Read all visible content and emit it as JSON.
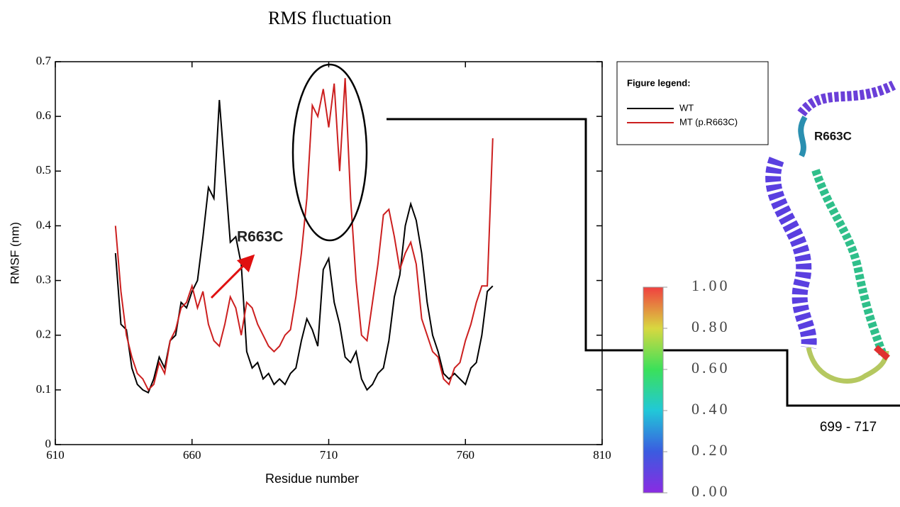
{
  "chart_data": {
    "type": "line",
    "title": "RMS fluctuation",
    "xlabel": "Residue number",
    "ylabel": "RMSF (nm)",
    "xlim": [
      610,
      810
    ],
    "xticks": [
      610,
      660,
      710,
      760,
      810
    ],
    "ylim": [
      0,
      0.7
    ],
    "yticks": [
      0,
      0.1,
      0.2,
      0.3,
      0.4,
      0.5,
      0.6,
      0.7
    ],
    "x": [
      632,
      634,
      636,
      638,
      640,
      642,
      644,
      646,
      648,
      650,
      652,
      654,
      656,
      658,
      660,
      662,
      664,
      666,
      668,
      670,
      672,
      674,
      676,
      678,
      680,
      682,
      684,
      686,
      688,
      690,
      692,
      694,
      696,
      698,
      700,
      702,
      704,
      706,
      708,
      710,
      712,
      714,
      716,
      718,
      720,
      722,
      724,
      726,
      728,
      730,
      732,
      734,
      736,
      738,
      740,
      742,
      744,
      746,
      748,
      750,
      752,
      754,
      756,
      758,
      760,
      762,
      764,
      766,
      768,
      770
    ],
    "legend_title": "Figure legend:",
    "series": [
      {
        "name": "WT",
        "color": "#000000",
        "values": [
          0.35,
          0.22,
          0.21,
          0.14,
          0.11,
          0.1,
          0.095,
          0.12,
          0.16,
          0.14,
          0.19,
          0.2,
          0.26,
          0.25,
          0.28,
          0.3,
          0.38,
          0.47,
          0.45,
          0.63,
          0.5,
          0.37,
          0.38,
          0.33,
          0.17,
          0.14,
          0.15,
          0.12,
          0.13,
          0.11,
          0.12,
          0.11,
          0.13,
          0.14,
          0.19,
          0.23,
          0.21,
          0.18,
          0.32,
          0.34,
          0.26,
          0.22,
          0.16,
          0.15,
          0.17,
          0.12,
          0.1,
          0.11,
          0.13,
          0.14,
          0.19,
          0.27,
          0.31,
          0.4,
          0.44,
          0.41,
          0.35,
          0.26,
          0.2,
          0.17,
          0.13,
          0.12,
          0.13,
          0.12,
          0.11,
          0.14,
          0.15,
          0.2,
          0.28,
          0.29
        ]
      },
      {
        "name": "MT (p.R663C)",
        "color": "#cc1f1f",
        "values": [
          0.4,
          0.28,
          0.2,
          0.16,
          0.13,
          0.12,
          0.1,
          0.11,
          0.15,
          0.13,
          0.19,
          0.21,
          0.25,
          0.26,
          0.29,
          0.25,
          0.28,
          0.22,
          0.19,
          0.18,
          0.22,
          0.27,
          0.25,
          0.2,
          0.26,
          0.25,
          0.22,
          0.2,
          0.18,
          0.17,
          0.18,
          0.2,
          0.21,
          0.27,
          0.35,
          0.45,
          0.62,
          0.6,
          0.65,
          0.58,
          0.66,
          0.5,
          0.67,
          0.45,
          0.3,
          0.2,
          0.19,
          0.26,
          0.33,
          0.42,
          0.43,
          0.38,
          0.32,
          0.35,
          0.37,
          0.33,
          0.23,
          0.2,
          0.17,
          0.16,
          0.12,
          0.11,
          0.14,
          0.15,
          0.19,
          0.22,
          0.26,
          0.29,
          0.29,
          0.56
        ]
      }
    ],
    "annotations": [
      "R663C",
      "R663C",
      "699 - 717"
    ],
    "colorbar": {
      "lim": [
        0,
        1
      ],
      "ticks": [
        {
          "value": 1,
          "label": "1.00"
        },
        {
          "value": 0.8,
          "label": "0.80"
        },
        {
          "value": 0.6,
          "label": "0.60"
        },
        {
          "value": 0.4,
          "label": "0.40"
        },
        {
          "value": 0.2,
          "label": "0.20"
        },
        {
          "value": 0,
          "label": "0.00"
        }
      ]
    }
  }
}
